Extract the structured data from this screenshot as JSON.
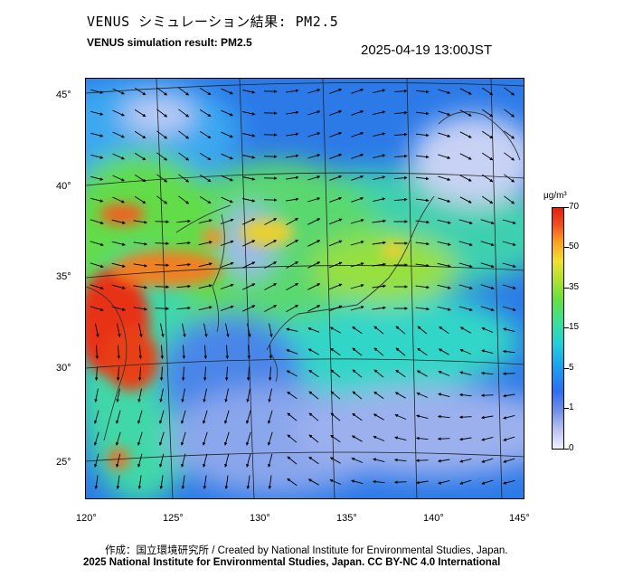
{
  "header": {
    "title_ja": "VENUS シミュレーション結果: PM2.5",
    "title_en": "VENUS simulation result: PM2.5",
    "timestamp": "2025-04-19 13:00JST"
  },
  "map": {
    "latitude_labels": [
      "45°",
      "40°",
      "35°",
      "30°",
      "25°"
    ],
    "longitude_labels": [
      "120°",
      "125°",
      "130°",
      "135°",
      "140°",
      "145°"
    ]
  },
  "colorbar": {
    "unit": "μg/m³",
    "tick_labels": [
      "70",
      "50",
      "35",
      "15",
      "5",
      "1",
      "0"
    ],
    "colors": [
      "#f0f0ff",
      "#6e8ee8",
      "#1aa0f0",
      "#40e08c",
      "#b0e030",
      "#f0e030",
      "#f05020",
      "#e02010"
    ]
  },
  "footer": {
    "credit_ja": "作成：国立環境研究所 / Created by National Institute for Environmental Studies, Japan.",
    "credit_en": "2025 National Institute for Environmental Studies, Japan. CC BY-NC 4.0 International"
  }
}
